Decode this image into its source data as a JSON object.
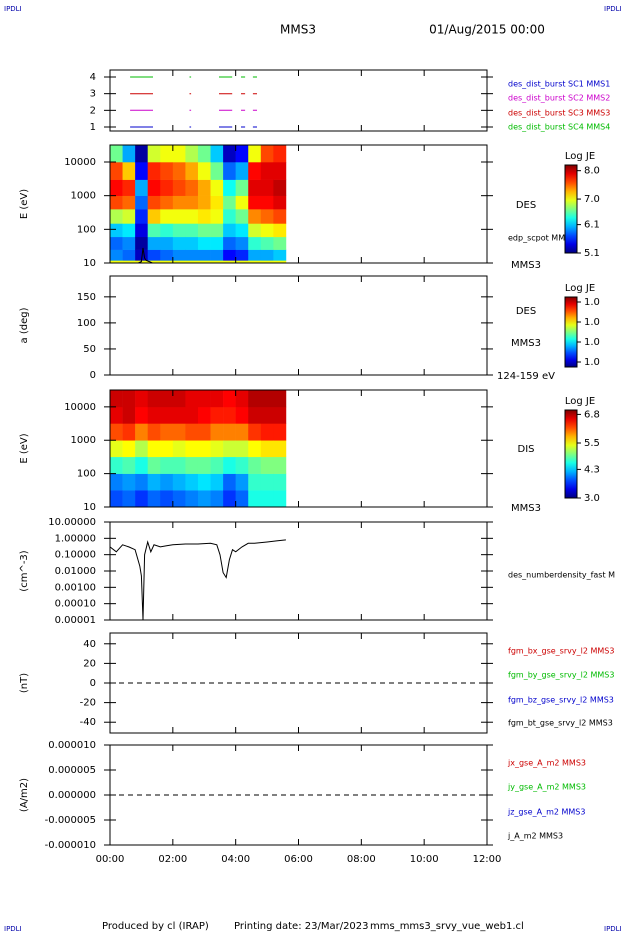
{
  "header": {
    "title": "MMS3",
    "date": "01/Aug/2015 00:00",
    "corner_tl": "IPDLI",
    "corner_tr": "IPDLI",
    "corner_bl": "IPDLI",
    "corner_br": "IPDLI"
  },
  "footer": {
    "producer": "Produced by cl (IRAP)",
    "printing_date": "Printing date: 23/Mar/2023",
    "file": "mms_mms3_srvy_vue_web1.cl"
  },
  "chart_data": [
    {
      "type": "line",
      "ylim": [
        0.76,
        4.42
      ],
      "yticks": [
        1,
        2,
        3,
        4
      ],
      "x": [
        0.64,
        1.37,
        1.4,
        2.53,
        2.58,
        2.62,
        3.47,
        3.89,
        3.95,
        4.17,
        4.3,
        4.4,
        4.55,
        4.68
      ],
      "series": [
        {
          "name": "des_dist_burst SC1 MMS1",
          "color": "#0000cc",
          "values": [
            1,
            1,
            null,
            1,
            1,
            null,
            1,
            1,
            null,
            1,
            1,
            null,
            1,
            1
          ]
        },
        {
          "name": "des_dist_burst SC2 MMS2",
          "color": "#cc00cc",
          "values": [
            2,
            2,
            null,
            2,
            2,
            null,
            2,
            2,
            null,
            2,
            2,
            null,
            2,
            2
          ]
        },
        {
          "name": "des_dist_burst SC3 MMS3",
          "color": "#cc0000",
          "values": [
            3,
            3,
            null,
            3,
            3,
            null,
            3,
            3,
            null,
            3,
            3,
            null,
            3,
            3
          ]
        },
        {
          "name": "des_dist_burst SC4 MMS4",
          "color": "#00bb00",
          "values": [
            4,
            4,
            null,
            4,
            4,
            null,
            4,
            4,
            null,
            4,
            4,
            null,
            4,
            4
          ]
        }
      ]
    },
    {
      "type": "heatmap",
      "ylabel": "E (eV)",
      "log_y": true,
      "ylim": [
        10,
        32000
      ],
      "yticks": [
        10,
        100,
        1000,
        10000
      ],
      "labels": [
        "DES",
        "MMS3"
      ],
      "x_edges": [
        0,
        0.4,
        0.8,
        1.2,
        1.6,
        2.0,
        2.4,
        2.8,
        3.2,
        3.6,
        4.0,
        4.4,
        4.8,
        5.2,
        5.6
      ],
      "y_edges": [
        10,
        12,
        25,
        60,
        150,
        400,
        1000,
        3000,
        10000,
        32000
      ],
      "z": [
        [
          7.0,
          5.9,
          5.8,
          6.1,
          6.8,
          7.6,
          7.8,
          7.6,
          6.6
        ],
        [
          7.0,
          5.8,
          5.9,
          6.2,
          6.9,
          7.5,
          7.7,
          7.2,
          6.0
        ],
        [
          7.0,
          5.3,
          5.2,
          5.4,
          5.6,
          5.8,
          6.0,
          5.5,
          5.2
        ],
        [
          7.0,
          5.7,
          6.0,
          6.5,
          7.2,
          7.6,
          7.8,
          7.7,
          6.9
        ],
        [
          7.0,
          5.8,
          6.0,
          6.4,
          7.0,
          7.5,
          7.7,
          7.6,
          7.0
        ],
        [
          7.0,
          5.9,
          6.1,
          6.5,
          7.0,
          7.4,
          7.6,
          7.5,
          7.0
        ],
        [
          7.0,
          5.9,
          6.1,
          6.5,
          7.0,
          7.4,
          7.5,
          7.3,
          6.8
        ],
        [
          7.0,
          5.9,
          6.2,
          6.6,
          7.1,
          7.3,
          7.3,
          7.0,
          6.6
        ],
        [
          7.0,
          5.9,
          6.2,
          6.6,
          7.0,
          7.1,
          7.0,
          6.6,
          6.1
        ],
        [
          7.0,
          5.5,
          5.8,
          6.1,
          6.4,
          6.6,
          6.3,
          5.8,
          5.3
        ],
        [
          7.0,
          5.6,
          5.9,
          6.2,
          6.6,
          7.0,
          6.6,
          6.0,
          5.5
        ],
        [
          7.0,
          6.0,
          6.4,
          6.9,
          7.4,
          7.8,
          7.9,
          7.8,
          7.0
        ],
        [
          7.0,
          6.0,
          6.5,
          7.0,
          7.5,
          7.8,
          7.9,
          7.9,
          7.6
        ],
        [
          7.0,
          6.1,
          6.6,
          7.1,
          7.6,
          7.9,
          8.0,
          7.9,
          7.7
        ]
      ],
      "colorbar": {
        "title": "Log JE",
        "zlim": [
          5.1,
          8.2
        ],
        "ticks": [
          5.1,
          6.1,
          {
            "value": 7,
            "label": "7.0"
          },
          {
            "value": 8,
            "label": "8.0"
          }
        ]
      },
      "overlay": {
        "name": "edp_scpot MMS3",
        "color": "#000000",
        "x": [
          0.9,
          1.0,
          1.05,
          1.1,
          1.15,
          1.25,
          1.35
        ],
        "values": [
          10,
          11,
          28,
          14,
          12,
          11,
          10
        ]
      }
    },
    {
      "type": "heatmap",
      "ylabel": "a (deg)",
      "ylim": [
        0,
        190
      ],
      "yticks": [
        0,
        50,
        100,
        150
      ],
      "labels": [
        "DES",
        "MMS3",
        "124-159 eV"
      ],
      "colorbar": {
        "title": "Log JE",
        "zlim": [
          0.965,
          1.035
        ],
        "ticks": [
          {
            "value": 0.97,
            "label": "1.0"
          },
          {
            "value": 0.99,
            "label": "1.0"
          },
          {
            "value": 1.01,
            "label": "1.0"
          },
          {
            "value": 1.03,
            "label": "1.0"
          }
        ]
      }
    },
    {
      "type": "heatmap",
      "ylabel": "E (eV)",
      "log_y": true,
      "ylim": [
        10,
        32000
      ],
      "yticks": [
        10,
        100,
        1000,
        10000
      ],
      "labels": [
        "DIS",
        "MMS3"
      ],
      "x_edges": [
        0,
        0.4,
        0.8,
        1.2,
        1.6,
        2.0,
        2.4,
        2.8,
        3.2,
        3.6,
        4.0,
        4.4,
        4.8,
        5.2,
        5.6
      ],
      "y_edges": [
        10,
        32,
        100,
        320,
        1000,
        3200,
        10000,
        32000
      ],
      "z": [
        [
          3.8,
          4.0,
          4.7,
          5.4,
          6.2,
          6.6,
          6.7
        ],
        [
          3.9,
          4.1,
          4.8,
          5.5,
          6.3,
          6.7,
          6.7
        ],
        [
          3.7,
          4.0,
          4.6,
          5.2,
          6.0,
          6.5,
          6.6
        ],
        [
          3.9,
          4.2,
          4.9,
          5.5,
          6.2,
          6.6,
          6.7
        ],
        [
          3.8,
          4.1,
          4.8,
          5.5,
          6.1,
          6.6,
          6.7
        ],
        [
          3.9,
          4.2,
          4.8,
          5.4,
          6.1,
          6.6,
          6.7
        ],
        [
          4.0,
          4.3,
          4.9,
          5.5,
          6.2,
          6.6,
          6.6
        ],
        [
          4.1,
          4.4,
          4.9,
          5.5,
          6.2,
          6.5,
          6.6
        ],
        [
          4.0,
          4.3,
          4.8,
          5.4,
          6.0,
          6.4,
          6.6
        ],
        [
          3.7,
          3.9,
          4.6,
          5.3,
          6.0,
          6.4,
          6.5
        ],
        [
          3.9,
          4.1,
          4.7,
          5.3,
          6.0,
          6.5,
          6.6
        ],
        [
          4.6,
          4.7,
          4.9,
          5.5,
          6.3,
          6.7,
          6.8
        ],
        [
          4.6,
          4.7,
          5.0,
          5.6,
          6.4,
          6.7,
          6.8
        ],
        [
          4.6,
          4.7,
          5.0,
          5.6,
          6.4,
          6.7,
          6.8
        ]
      ],
      "colorbar": {
        "title": "Log JE",
        "zlim": [
          3.0,
          7.0
        ],
        "ticks": [
          {
            "value": 3,
            "label": "3.0"
          },
          4.3,
          5.5,
          6.8
        ]
      }
    },
    {
      "type": "line",
      "ylabel": "(cm^-3)",
      "log_y": true,
      "ylim": [
        1e-05,
        10
      ],
      "yticks": [
        {
          "value": 10,
          "label": "10.00000"
        },
        {
          "value": 1,
          "label": "1.00000"
        },
        {
          "value": 0.1,
          "label": "0.10000"
        },
        {
          "value": 0.01,
          "label": "0.01000"
        },
        {
          "value": 0.001,
          "label": "0.00100"
        },
        {
          "value": 0.0001,
          "label": "0.00010"
        },
        {
          "value": 1e-05,
          "label": "0.00001"
        }
      ],
      "x": [
        0,
        0.2,
        0.4,
        0.6,
        0.8,
        0.95,
        1.0,
        1.05,
        1.1,
        1.2,
        1.3,
        1.4,
        1.6,
        1.8,
        2.0,
        2.4,
        2.8,
        3.2,
        3.4,
        3.5,
        3.6,
        3.7,
        3.8,
        3.9,
        4.0,
        4.2,
        4.4,
        4.6,
        5.0,
        5.3,
        5.6
      ],
      "series": [
        {
          "name": "des_numberdensity_fast M",
          "color": "#000000",
          "values": [
            0.3,
            0.15,
            0.4,
            0.3,
            0.2,
            0.02,
            0.005,
            1e-05,
            0.1,
            0.6,
            0.15,
            0.4,
            0.3,
            0.35,
            0.4,
            0.45,
            0.45,
            0.5,
            0.4,
            0.1,
            0.008,
            0.004,
            0.05,
            0.2,
            0.15,
            0.3,
            0.5,
            0.5,
            0.6,
            0.7,
            0.8
          ]
        }
      ]
    },
    {
      "type": "line",
      "ylabel": "(nT)",
      "ylim": [
        -51,
        51
      ],
      "yticks": [
        -40,
        -20,
        0,
        20,
        40
      ],
      "zero_line": true,
      "series": [
        {
          "name": "fgm_bx_gse_srvy_l2 MMS3",
          "color": "#cc0000"
        },
        {
          "name": "fgm_by_gse_srvy_l2 MMS3",
          "color": "#00bb00"
        },
        {
          "name": "fgm_bz_gse_srvy_l2 MMS3",
          "color": "#0000cc"
        },
        {
          "name": "fgm_bt_gse_srvy_l2 MMS3",
          "color": "#000000"
        }
      ]
    },
    {
      "type": "line",
      "ylabel": "(A/m2)",
      "ylim": [
        -1e-05,
        1e-05
      ],
      "zero_line": true,
      "yticks": [
        {
          "value": 1e-05,
          "label": "0.000010"
        },
        {
          "value": 5e-06,
          "label": "0.000005"
        },
        {
          "value": 0,
          "label": "0.000000"
        },
        {
          "value": -5e-06,
          "label": "-0.000005"
        },
        {
          "value": -1e-05,
          "label": "-0.000010"
        }
      ],
      "xlim": [
        0,
        12
      ],
      "xticks": [
        {
          "value": 0,
          "label": "00:00"
        },
        {
          "value": 2,
          "label": "02:00"
        },
        {
          "value": 4,
          "label": "04:00"
        },
        {
          "value": 6,
          "label": "06:00"
        },
        {
          "value": 8,
          "label": "08:00"
        },
        {
          "value": 10,
          "label": "10:00"
        },
        {
          "value": 12,
          "label": "12:00"
        }
      ],
      "series": [
        {
          "name": "jx_gse_A_m2 MMS3",
          "color": "#cc0000"
        },
        {
          "name": "jy_gse_A_m2 MMS3",
          "color": "#00bb00"
        },
        {
          "name": "jz_gse_A_m2 MMS3",
          "color": "#0000cc"
        },
        {
          "name": "j_A_m2 MMS3",
          "color": "#000000"
        }
      ]
    }
  ]
}
